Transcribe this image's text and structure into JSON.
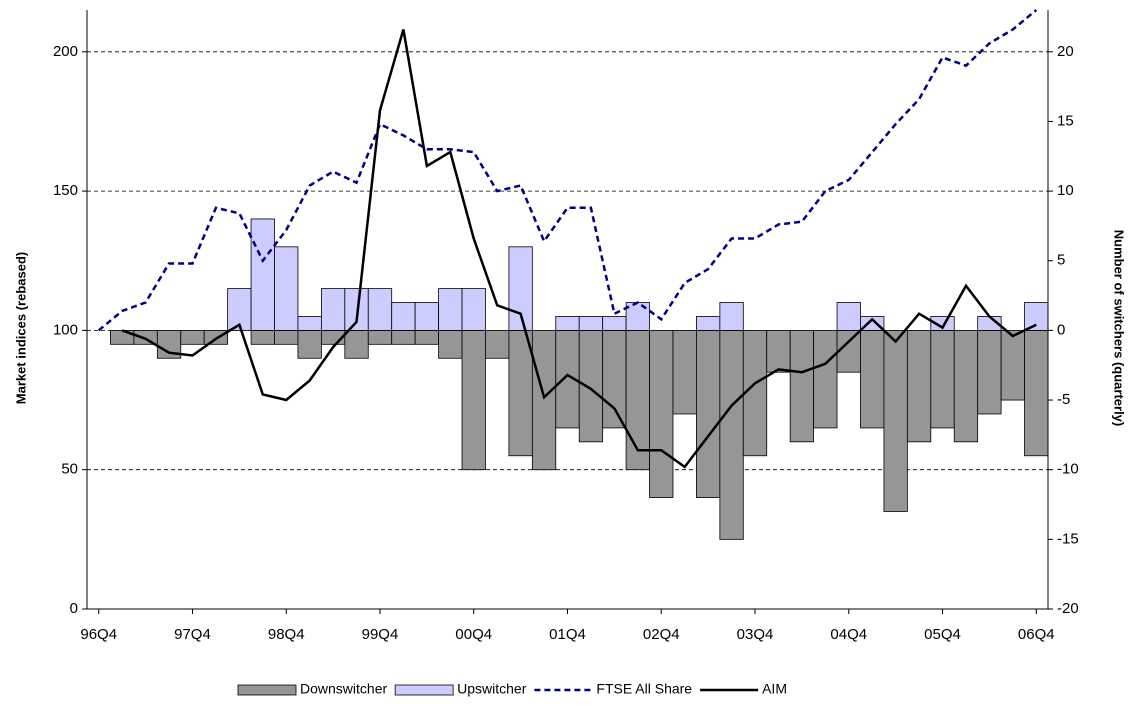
{
  "chart_data": {
    "type": "bar",
    "categories": [
      "96Q4",
      null,
      null,
      null,
      "97Q4",
      null,
      null,
      null,
      "98Q4",
      null,
      null,
      null,
      "99Q4",
      null,
      null,
      null,
      "00Q4",
      null,
      null,
      null,
      "01Q4",
      null,
      null,
      null,
      "02Q4",
      null,
      null,
      null,
      "03Q4",
      null,
      null,
      null,
      "04Q4",
      null,
      null,
      null,
      "05Q4",
      null,
      null,
      null,
      "06Q4"
    ],
    "ylabel": "Market indices (rebased)",
    "y2label": "Number of switchers (quarterly)",
    "ylim": [
      0,
      215
    ],
    "yticks": [
      0,
      50,
      100,
      150,
      200
    ],
    "y2lim": [
      -20,
      23
    ],
    "y2ticks": [
      -20,
      -15,
      -10,
      -5,
      0,
      5,
      10,
      15,
      20
    ],
    "grid": true,
    "legend": "bottom",
    "series": [
      {
        "name": "Downswitcher",
        "type": "bar",
        "axis": "y2",
        "color": "#969696",
        "values": [
          null,
          -1,
          -1,
          -2,
          -1,
          -1,
          0,
          -1,
          -1,
          -2,
          -1,
          -2,
          -1,
          -1,
          -1,
          -2,
          -10,
          -2,
          -9,
          -10,
          -7,
          -8,
          -7,
          -10,
          -12,
          -6,
          -12,
          -15,
          -9,
          -3,
          -8,
          -7,
          -3,
          -7,
          -13,
          -8,
          -7,
          -8,
          -6,
          -5,
          -9
        ]
      },
      {
        "name": "Upswitcher",
        "type": "bar",
        "axis": "y2",
        "color": "#ccccff",
        "values": [
          null,
          0,
          0,
          0,
          0,
          0,
          3,
          8,
          6,
          1,
          3,
          3,
          3,
          2,
          2,
          3,
          3,
          0,
          6,
          0,
          1,
          1,
          1,
          2,
          0,
          0,
          1,
          2,
          0,
          0,
          0,
          0,
          2,
          1,
          0,
          0,
          1,
          0,
          1,
          0,
          2
        ]
      },
      {
        "name": "FTSE All Share",
        "type": "line",
        "style": "dashed",
        "color": "#000080",
        "values": [
          100,
          107,
          110,
          124,
          124,
          144,
          142,
          125,
          136,
          152,
          157,
          153,
          174,
          170,
          165,
          165,
          164,
          150,
          152,
          132,
          144,
          144,
          106,
          110,
          104,
          117,
          122,
          133,
          133,
          138,
          139,
          150,
          154,
          164,
          174,
          183,
          198,
          195,
          203,
          208,
          215
        ]
      },
      {
        "name": "AIM",
        "type": "line",
        "style": "solid",
        "color": "#000000",
        "values": [
          null,
          100,
          97,
          92,
          91,
          97,
          102,
          77,
          75,
          82,
          94,
          103,
          179,
          208,
          159,
          164,
          133,
          109,
          106,
          76,
          84,
          79,
          72,
          57,
          57,
          51,
          62,
          73,
          81,
          86,
          85,
          88,
          96,
          104,
          96,
          106,
          101,
          116,
          105,
          98,
          102
        ]
      }
    ]
  }
}
